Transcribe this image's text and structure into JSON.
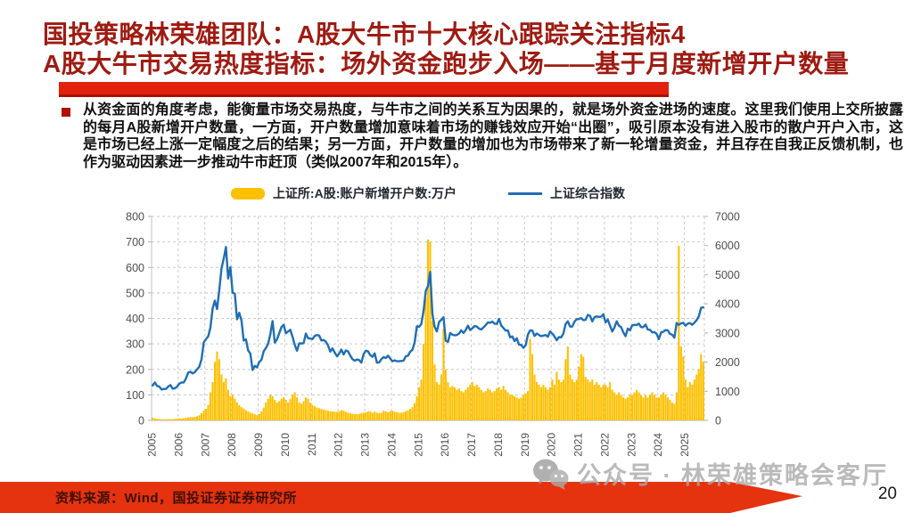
{
  "slide": {
    "title_line1": "国投策略林荣雄团队：A股大牛市十大核心跟踪关注指标4",
    "title_line2": "A股大牛市交易热度指标：场外资金跑步入场——基于月度新增开户数量",
    "body_text": "从资金面的角度考虑，能衡量市场交易热度，与牛市之间的关系互为因果的，就是场外资金进场的速度。这里我们使用上交所披露的每月A股新增开户数量，一方面，开户数量增加意味着市场的赚钱效应开始“出圈”，吸引原本没有进入股市的散户开户入市，这是市场已经上涨一定幅度之后的结果；另一方面，开户数量的增加也为市场带来了新一轮增量资金，并且存在自我正反馈机制，也作为驱动因素进一步推动牛市赶顶（类似2007年和2015年）。",
    "footer_source": "资料来源：Wind，国投证券证券研究所",
    "page_number": "20",
    "watermark_text": "公众号 · 林荣雄策略会客厅",
    "watermark_icon": "wechat-icon",
    "colors": {
      "title_red": "#9E1B12",
      "underline_red": "#E3220E",
      "footer_red": "#E5330F",
      "bar_yellow": "#FFC000",
      "line_blue": "#1F6EB4",
      "axis_text": "#4d4d4d",
      "gridline": "#c9c9c9",
      "watermark_gray": "#a9a9a9"
    }
  },
  "chart_data": {
    "type": "bar",
    "subtype": "monthly bar + line combo, dual axis",
    "x_start": "2005-01",
    "x_end": "2025-09",
    "x_tick_labels": [
      "2005",
      "2006",
      "2007",
      "2008",
      "2009",
      "2010",
      "2011",
      "2012",
      "2013",
      "2014",
      "2015",
      "2016",
      "2017",
      "2018",
      "2019",
      "2020",
      "2021",
      "2022",
      "2023",
      "2024",
      "2025"
    ],
    "left_axis": {
      "min": 0,
      "max": 800,
      "step": 100
    },
    "right_axis": {
      "min": 0,
      "max": 7000,
      "step": 1000
    },
    "grid": "dashed",
    "legend_position": "top-center",
    "series": [
      {
        "name": "上证所:A股:账户新增开户数:万户",
        "type": "bar",
        "axis": "left",
        "color": "#FFC000",
        "values": [
          10,
          8,
          6,
          5,
          4,
          4,
          4,
          5,
          5,
          5,
          6,
          7,
          8,
          7,
          9,
          10,
          12,
          13,
          12,
          14,
          16,
          20,
          28,
          38,
          45,
          60,
          110,
          150,
          230,
          270,
          240,
          180,
          150,
          165,
          120,
          95,
          100,
          85,
          70,
          60,
          52,
          46,
          40,
          35,
          30,
          27,
          24,
          20,
          25,
          35,
          50,
          70,
          85,
          100,
          95,
          80,
          70,
          75,
          85,
          90,
          80,
          70,
          85,
          100,
          110,
          90,
          70,
          65,
          75,
          90,
          85,
          70,
          60,
          55,
          50,
          48,
          45,
          42,
          40,
          38,
          36,
          35,
          34,
          33,
          35,
          40,
          38,
          34,
          30,
          28,
          26,
          25,
          24,
          25,
          28,
          30,
          32,
          35,
          35,
          30,
          34,
          30,
          28,
          30,
          38,
          35,
          32,
          36,
          38,
          34,
          32,
          30,
          30,
          32,
          36,
          40,
          45,
          52,
          68,
          95,
          130,
          160,
          300,
          480,
          710,
          700,
          390,
          220,
          150,
          140,
          180,
          360,
          200,
          150,
          130,
          135,
          130,
          120,
          125,
          115,
          110,
          120,
          130,
          140,
          150,
          135,
          140,
          130,
          120,
          110,
          115,
          125,
          120,
          110,
          115,
          125,
          130,
          120,
          135,
          120,
          110,
          100,
          100,
          95,
          90,
          85,
          90,
          100,
          105,
          115,
          320,
          260,
          180,
          150,
          140,
          130,
          140,
          130,
          120,
          130,
          160,
          140,
          190,
          160,
          150,
          160,
          240,
          290,
          180,
          160,
          150,
          160,
          210,
          260,
          250,
          170,
          160,
          150,
          160,
          140,
          150,
          140,
          130,
          140,
          140,
          130,
          150,
          120,
          110,
          100,
          110,
          100,
          90,
          85,
          90,
          100,
          100,
          110,
          120,
          110,
          100,
          90,
          100,
          90,
          100,
          110,
          100,
          90,
          90,
          100,
          110,
          100,
          90,
          80,
          70,
          65,
          110,
          685,
          290,
          250,
          160,
          130,
          150,
          140,
          160,
          180,
          200,
          260,
          230
        ]
      },
      {
        "name": "上证综合指数",
        "type": "line",
        "axis": "right",
        "color": "#1F6EB4",
        "values": [
          1200,
          1300,
          1180,
          1160,
          1060,
          1080,
          1080,
          1160,
          1210,
          1090,
          1100,
          1160,
          1260,
          1300,
          1300,
          1440,
          1640,
          1670,
          1610,
          1660,
          1750,
          1840,
          2100,
          2675,
          2790,
          2880,
          3180,
          3840,
          4110,
          3820,
          4470,
          5220,
          5550,
          5950,
          4870,
          5260,
          4380,
          4350,
          3470,
          3690,
          3430,
          2740,
          2780,
          2400,
          2290,
          1730,
          1870,
          1820,
          2000,
          2080,
          2370,
          2480,
          2630,
          2960,
          3410,
          2670,
          2780,
          2990,
          3200,
          3280,
          2990,
          3050,
          3110,
          2870,
          2590,
          2390,
          2640,
          2640,
          2650,
          2980,
          2820,
          2810,
          2790,
          2900,
          2930,
          2910,
          2740,
          2760,
          2700,
          2570,
          2360,
          2470,
          2330,
          2200,
          2290,
          2430,
          2260,
          2400,
          2370,
          2220,
          2100,
          2050,
          2090,
          2070,
          1980,
          2270,
          2390,
          2370,
          2240,
          2180,
          2300,
          1980,
          1990,
          2100,
          2170,
          2140,
          2220,
          2120,
          2030,
          2060,
          2030,
          2030,
          2040,
          2050,
          2200,
          2220,
          2360,
          2420,
          2680,
          3230,
          3210,
          3310,
          3750,
          4440,
          4610,
          5100,
          3660,
          3210,
          3050,
          3380,
          3450,
          3540,
          2740,
          2690,
          3000,
          2940,
          2920,
          2930,
          2980,
          3090,
          3000,
          3100,
          3250,
          3100,
          3160,
          3240,
          3220,
          3150,
          3120,
          3190,
          3270,
          3360,
          3350,
          3390,
          3320,
          3310,
          3480,
          3260,
          3170,
          3080,
          3090,
          2850,
          2880,
          2720,
          2820,
          2600,
          2590,
          2490,
          2580,
          2940,
          3090,
          3080,
          2900,
          2980,
          2930,
          2890,
          2910,
          2930,
          2870,
          3050,
          2980,
          2880,
          2750,
          2860,
          2850,
          2980,
          3310,
          3400,
          3220,
          3220,
          3390,
          3470,
          3480,
          3510,
          3440,
          3450,
          3620,
          3590,
          3400,
          3540,
          3570,
          3550,
          3560,
          3640,
          3360,
          3460,
          3250,
          3050,
          3190,
          3400,
          3250,
          3200,
          3020,
          2890,
          3150,
          3090,
          3260,
          3280,
          3270,
          3320,
          3200,
          3200,
          3290,
          3120,
          3110,
          3020,
          3030,
          2970,
          2790,
          3020,
          3040,
          3100,
          3090,
          2970,
          2940,
          2840,
          3340,
          3280,
          3330,
          3350,
          3250,
          3320,
          3340,
          3280,
          3350,
          3440,
          3570,
          3860,
          3880
        ]
      }
    ]
  }
}
